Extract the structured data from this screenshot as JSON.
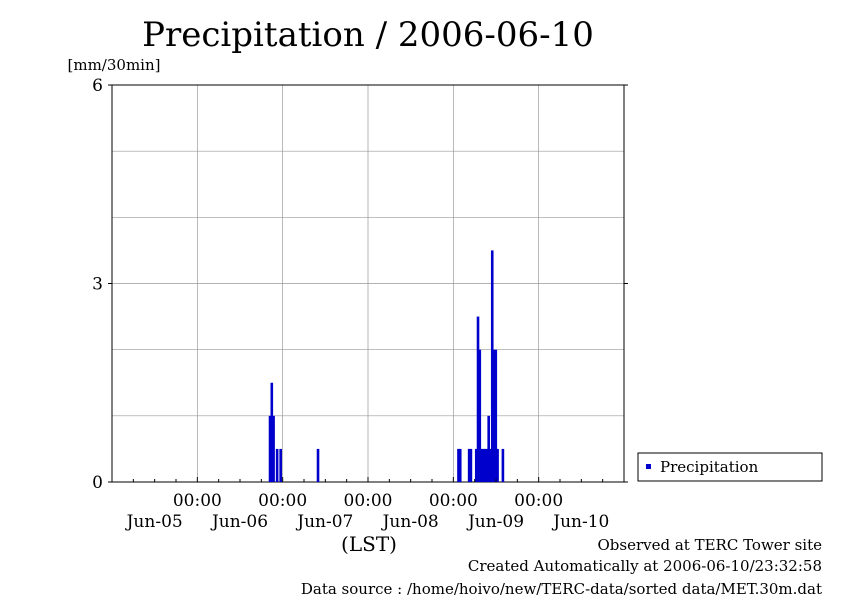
{
  "chart_data": {
    "type": "bar",
    "title": "Precipitation / 2006-06-10",
    "ylabel": "[mm/30min]",
    "xlabel": "(LST)",
    "ylim": [
      0,
      6
    ],
    "yticks": [
      "0",
      "3",
      "6"
    ],
    "xlim_hours": [
      0,
      144
    ],
    "x_major_labels": [
      {
        "hour": 24,
        "time": "00:00",
        "date": "Jun-05"
      },
      {
        "hour": 48,
        "time": "00:00",
        "date": "Jun-06"
      },
      {
        "hour": 72,
        "time": "00:00",
        "date": "Jun-07"
      },
      {
        "hour": 96,
        "time": "00:00",
        "date": "Jun-08"
      },
      {
        "hour": 120,
        "time": "00:00",
        "date": "Jun-09"
      },
      {
        "hour": 144,
        "time": "",
        "date": "Jun-10"
      }
    ],
    "grid": true,
    "legend": "Precipitation",
    "series": [
      {
        "name": "Precipitation",
        "color": "#0000cc",
        "x": [
          44.5,
          45.0,
          45.5,
          46.5,
          47.5,
          58.0,
          97.5,
          98.0,
          100.5,
          101.0,
          102.5,
          103.0,
          103.5,
          104.0,
          104.5,
          105.0,
          105.5,
          106.0,
          106.5,
          107.0,
          107.5,
          108.0,
          108.5,
          110.0
        ],
        "values": [
          1.0,
          1.5,
          1.0,
          0.5,
          0.5,
          0.5,
          0.5,
          0.5,
          0.5,
          0.5,
          0.5,
          2.5,
          2.0,
          0.5,
          0.5,
          0.5,
          0.5,
          1.0,
          0.5,
          3.5,
          2.0,
          2.0,
          0.5,
          0.5
        ]
      }
    ]
  },
  "footer": {
    "observed": "Observed at TERC Tower site",
    "created": "Created Automatically at 2006-06-10/23:32:58",
    "source": "Data source : /home/hoivo/new/TERC-data/sorted  data/MET.30m.dat"
  }
}
